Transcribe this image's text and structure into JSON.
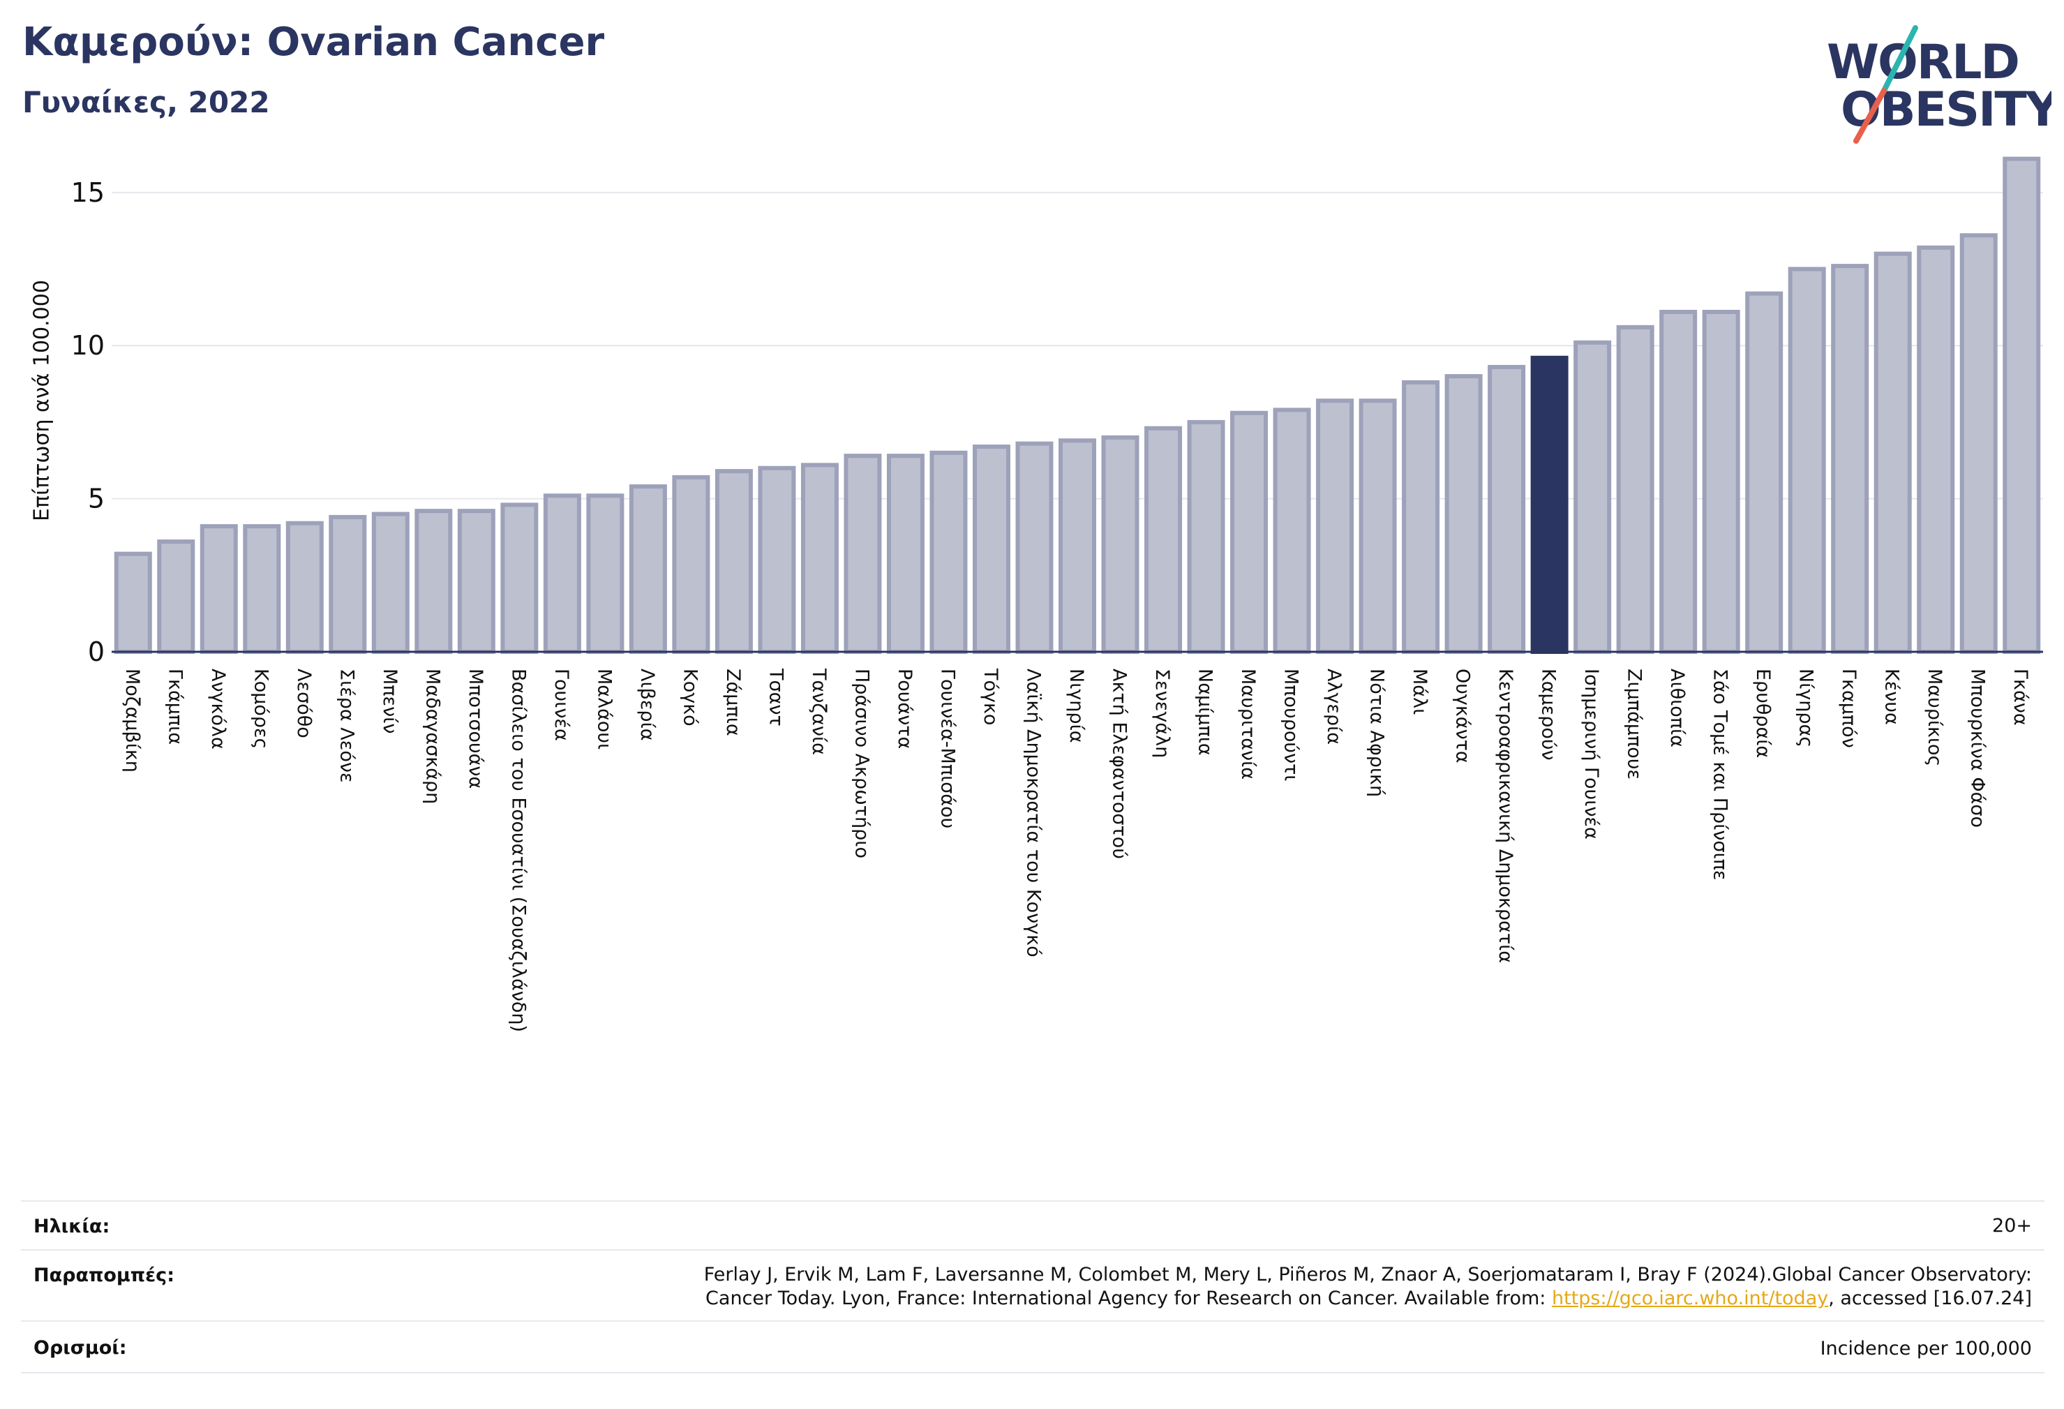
{
  "header": {
    "title": "Καμερούν: Ovarian Cancer",
    "subtitle": "Γυναίκες, 2022"
  },
  "logo": {
    "line1": "WORLD",
    "line2": "OBESITY"
  },
  "colors": {
    "bar_default": "#bdc0cf",
    "bar_border": "#9da1b9",
    "bar_highlight": "#2b3561",
    "title": "#2b3561",
    "logo_text": "#2b3561",
    "logo_slash_top": "#2ab5ae",
    "logo_slash_bottom": "#e8604c",
    "link": "#e6a817"
  },
  "chart_data": {
    "type": "bar",
    "ylabel": "Επίπτωση ανά 100.000",
    "ylim": [
      0,
      16.5
    ],
    "yticks": [
      0,
      5,
      10,
      15
    ],
    "grid": true,
    "highlight": "Καμερούν",
    "categories": [
      "Μοζαμβίκη",
      "Γκάμπια",
      "Ανγκόλα",
      "Κομόρες",
      "Λεσόθο",
      "Σιέρα Λεόνε",
      "Μπενίν",
      "Μαδαγασκάρη",
      "Μποτσουάνα",
      "Βασίλειο του Εσουατίνι (Σουαζιλάνδη)",
      "Γουινέα",
      "Μαλάουι",
      "Λιβερία",
      "Κογκό",
      "Ζάμπια",
      "Τσαντ",
      "Τανζανία",
      "Πράσινο Ακρωτήριο",
      "Ρουάντα",
      "Γουινέα-Μπισάου",
      "Τόγκο",
      "Λαϊκή Δημοκρατία του Κονγκό",
      "Νιγηρία",
      "Ακτή Ελεφαντοστού",
      "Σενεγάλη",
      "Ναμίμπια",
      "Μαυριτανία",
      "Μπουρούντι",
      "Αλγερία",
      "Νότια Αφρική",
      "Μάλι",
      "Ουγκάντα",
      "Κεντροαφρικανική Δημοκρατία",
      "Καμερούν",
      "Ισημερινή Γουινέα",
      "Ζιμπάμπουε",
      "Αιθιοπία",
      "Σάο Τομέ και Πρίνσιπε",
      "Ερυθραία",
      "Νίγηρας",
      "Γκαμπόν",
      "Κένυα",
      "Μαυρίκιος",
      "Μπουρκίνα Φάσο",
      "Γκάνα"
    ],
    "values": [
      3.2,
      3.6,
      4.1,
      4.1,
      4.2,
      4.4,
      4.5,
      4.6,
      4.6,
      4.8,
      5.1,
      5.1,
      5.4,
      5.7,
      5.9,
      6.0,
      6.1,
      6.4,
      6.4,
      6.5,
      6.7,
      6.8,
      6.9,
      7.0,
      7.3,
      7.5,
      7.8,
      7.9,
      8.2,
      8.2,
      8.8,
      9.0,
      9.3,
      9.6,
      10.1,
      10.6,
      11.1,
      11.1,
      11.7,
      12.5,
      12.6,
      13.0,
      13.2,
      13.6,
      16.1
    ]
  },
  "footer": {
    "age_label": "Ηλικία:",
    "age_value": "20+",
    "refs_label": "Παραπομπές:",
    "refs_line1": "Ferlay J, Ervik M, Lam F, Laversanne M, Colombet M, Mery L, Piñeros M, Znaor A, Soerjomataram I, Bray F (2024).Global Cancer Observatory:",
    "refs_line2_prefix": "Cancer Today. Lyon, France: International Agency for Research on Cancer. Available from: ",
    "refs_link": "https://gco.iarc.who.int/today",
    "refs_line2_suffix": ", accessed [16.07.24]",
    "def_label": "Ορισμοί:",
    "def_value": "Incidence per 100,000"
  }
}
